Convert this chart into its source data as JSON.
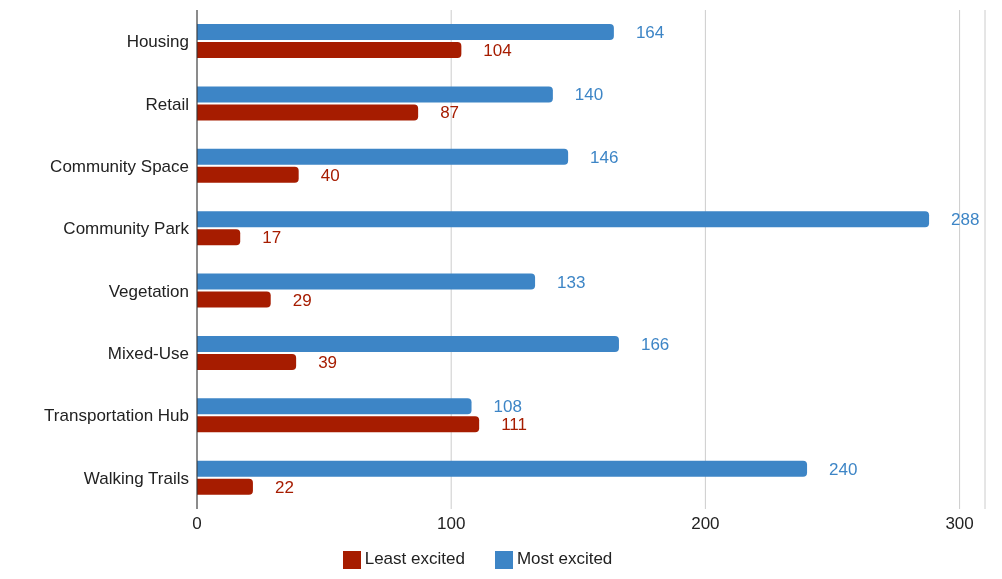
{
  "chart_data": {
    "type": "bar",
    "orientation": "horizontal",
    "categories": [
      "Housing",
      "Retail",
      "Community Space",
      "Community Park",
      "Vegetation",
      "Mixed-Use",
      "Transportation Hub",
      "Walking Trails"
    ],
    "series": [
      {
        "name": "Most excited",
        "color": "#3d85c6",
        "values": [
          164,
          140,
          146,
          288,
          133,
          166,
          108,
          240
        ]
      },
      {
        "name": "Least excited",
        "color": "#a61c00",
        "values": [
          104,
          87,
          40,
          17,
          29,
          39,
          111,
          22
        ]
      }
    ],
    "xlim": [
      0,
      310
    ],
    "xticks": [
      0,
      100,
      200,
      300
    ],
    "grid": "x",
    "legend": "bottom",
    "data_labels": true
  }
}
